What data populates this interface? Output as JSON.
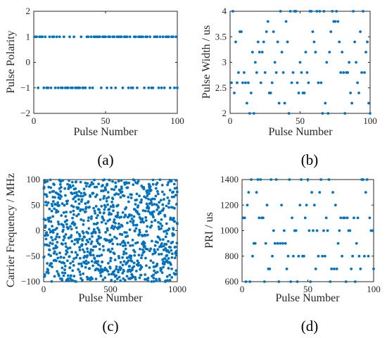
{
  "marker_color": "#0072bd",
  "chart_data": [
    {
      "type": "scatter",
      "caption": "(a)",
      "xlabel": "Pulse Number",
      "ylabel": "Pulse Polarity",
      "xlim": [
        0,
        100
      ],
      "ylim": [
        -2,
        2
      ],
      "xticks": [
        0,
        50,
        100
      ],
      "yticks": [
        -2,
        -1,
        0,
        1,
        2
      ],
      "grid": false,
      "y_seed": 1,
      "y": [
        1,
        1,
        -1,
        1,
        1,
        1,
        -1,
        1,
        -1,
        -1,
        1,
        -1,
        1,
        1,
        -1,
        1,
        -1,
        1,
        -1,
        -1,
        1,
        -1,
        -1,
        -1,
        1,
        -1,
        -1,
        1,
        -1,
        -1,
        -1,
        -1,
        1,
        -1,
        -1,
        -1,
        1,
        1,
        -1,
        1,
        -1,
        1,
        1,
        1,
        1,
        1,
        -1,
        1,
        1,
        1,
        -1,
        1,
        1,
        -1,
        1,
        1,
        -1,
        1,
        1,
        1,
        1,
        -1,
        1,
        1,
        1,
        -1,
        1,
        -1,
        -1,
        1,
        1,
        -1,
        1,
        1,
        1,
        1,
        -1,
        1,
        1,
        -1,
        1,
        -1,
        -1,
        1,
        1,
        1,
        -1,
        1,
        -1,
        1,
        -1,
        1,
        1,
        1,
        -1,
        1,
        1,
        -1,
        1,
        -1
      ]
    },
    {
      "type": "scatter",
      "caption": "(b)",
      "xlabel": "Pulse Number",
      "ylabel": "Pulse Width / us",
      "xlim": [
        0,
        100
      ],
      "ylim": [
        2,
        4
      ],
      "xticks": [
        0,
        50,
        100
      ],
      "yticks": [
        2,
        2.5,
        3,
        3.5,
        4
      ],
      "grid": false,
      "y_seed": 2,
      "y": [
        2.6,
        4,
        2.4,
        3.4,
        2.6,
        2.8,
        3.6,
        3.6,
        2.6,
        2.8,
        2.6,
        2.2,
        2.6,
        2,
        2.4,
        3.2,
        2,
        3,
        2.8,
        3.4,
        3.2,
        2.6,
        3.2,
        3.4,
        2.8,
        3.6,
        3.8,
        2.4,
        2.4,
        2.6,
        3.6,
        3,
        2.8,
        3.4,
        2.2,
        4,
        3.2,
        2.8,
        2.2,
        3.8,
        3.4,
        2,
        4,
        2.6,
        2.8,
        4,
        4,
        2.6,
        2.4,
        3,
        2.8,
        2.4,
        2.4,
        3.2,
        2.8,
        2.6,
        4,
        4,
        3.6,
        3.4,
        3.2,
        4,
        2.6,
        4,
        2.6,
        2,
        4,
        2.2,
        3,
        2,
        3.2,
        3.6,
        4,
        3.8,
        3.8,
        4,
        3.8,
        3.4,
        2.8,
        3.2,
        2.8,
        2,
        2.8,
        2.8,
        3,
        2.4,
        2.2,
        4,
        3.4,
        3,
        2.6,
        2.4,
        3.6,
        2.8,
        4,
        2.8,
        3.2,
        3.4,
        2.2,
        2
      ]
    },
    {
      "type": "scatter",
      "caption": "(c)",
      "xlabel": "Pulse Number",
      "ylabel": "Carrier Frequency / MHz",
      "xlim": [
        0,
        1000
      ],
      "ylim": [
        -100,
        100
      ],
      "xticks": [
        0,
        500,
        1000
      ],
      "yticks": [
        -100,
        -50,
        0,
        50,
        100
      ],
      "grid": false,
      "points": 1000,
      "distribution": "uniform random in [-100, 100]",
      "y_seed": 7
    },
    {
      "type": "scatter",
      "caption": "(d)",
      "xlabel": "Pulse Number",
      "ylabel": "PRI / us",
      "xlim": [
        0,
        100
      ],
      "ylim": [
        600,
        1400
      ],
      "xticks": [
        0,
        50,
        100
      ],
      "yticks": [
        600,
        800,
        1000,
        1200,
        1400
      ],
      "grid": false,
      "y_seed": 3,
      "y": [
        1100,
        1100,
        600,
        1200,
        1300,
        600,
        1400,
        800,
        900,
        900,
        1300,
        1400,
        1100,
        1400,
        1100,
        1100,
        600,
        900,
        1200,
        700,
        700,
        1400,
        800,
        1000,
        900,
        1400,
        900,
        600,
        900,
        1200,
        900,
        1000,
        900,
        700,
        800,
        1400,
        600,
        1100,
        800,
        1000,
        1000,
        600,
        800,
        1200,
        1400,
        800,
        800,
        1100,
        1200,
        1400,
        1000,
        600,
        1300,
        1000,
        1200,
        700,
        1000,
        800,
        1300,
        1400,
        800,
        1000,
        800,
        1100,
        1000,
        1400,
        600,
        700,
        1300,
        700,
        1200,
        700,
        900,
        1000,
        1100,
        800,
        1100,
        1100,
        600,
        1100,
        1000,
        1000,
        700,
        800,
        1100,
        600,
        900,
        1100,
        800,
        700,
        1400,
        1400,
        800,
        1300,
        1400,
        800,
        1100,
        1000,
        1000,
        700
      ]
    }
  ]
}
